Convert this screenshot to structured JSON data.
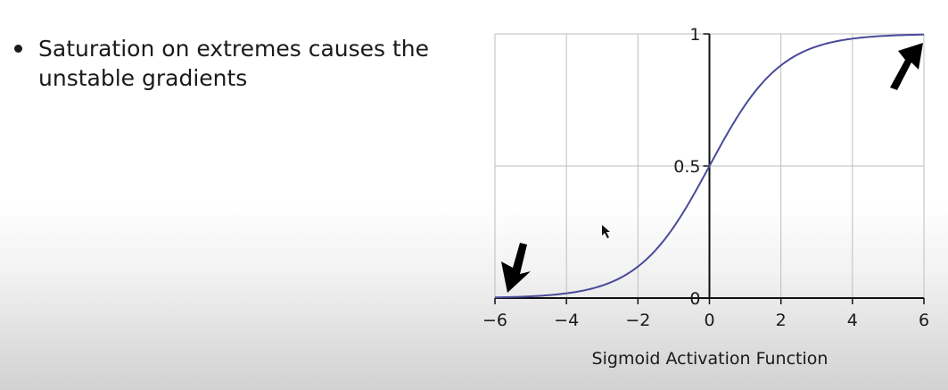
{
  "slide": {
    "bullets": [
      "Saturation on extremes causes the unstable gradients"
    ]
  },
  "chart_data": {
    "type": "line",
    "xlabel": "Sigmoid Activation Function",
    "ylabel": "",
    "xlim": [
      -6,
      6
    ],
    "ylim": [
      0,
      1
    ],
    "xticks": [
      -6,
      -4,
      -2,
      0,
      2,
      4,
      6
    ],
    "yticks": [
      0,
      0.5,
      1
    ],
    "xtick_labels": [
      "−6",
      "−4",
      "−2",
      "0",
      "2",
      "4",
      "6"
    ],
    "ytick_labels": [
      "0",
      "0.5",
      "1"
    ],
    "grid": true,
    "series": [
      {
        "function": "sigmoid",
        "color": "#4a4a9a",
        "x": [
          -6,
          -5,
          -4,
          -3,
          -2,
          -1,
          0,
          1,
          2,
          3,
          4,
          5,
          6
        ],
        "y": [
          0.0025,
          0.0067,
          0.018,
          0.047,
          0.119,
          0.269,
          0.5,
          0.731,
          0.881,
          0.953,
          0.982,
          0.993,
          0.9975
        ]
      }
    ],
    "annotations": [
      {
        "type": "arrow",
        "direction": "down",
        "at": "bottom-left",
        "color": "#000000"
      },
      {
        "type": "arrow",
        "direction": "up",
        "at": "top-right",
        "color": "#000000"
      }
    ]
  }
}
